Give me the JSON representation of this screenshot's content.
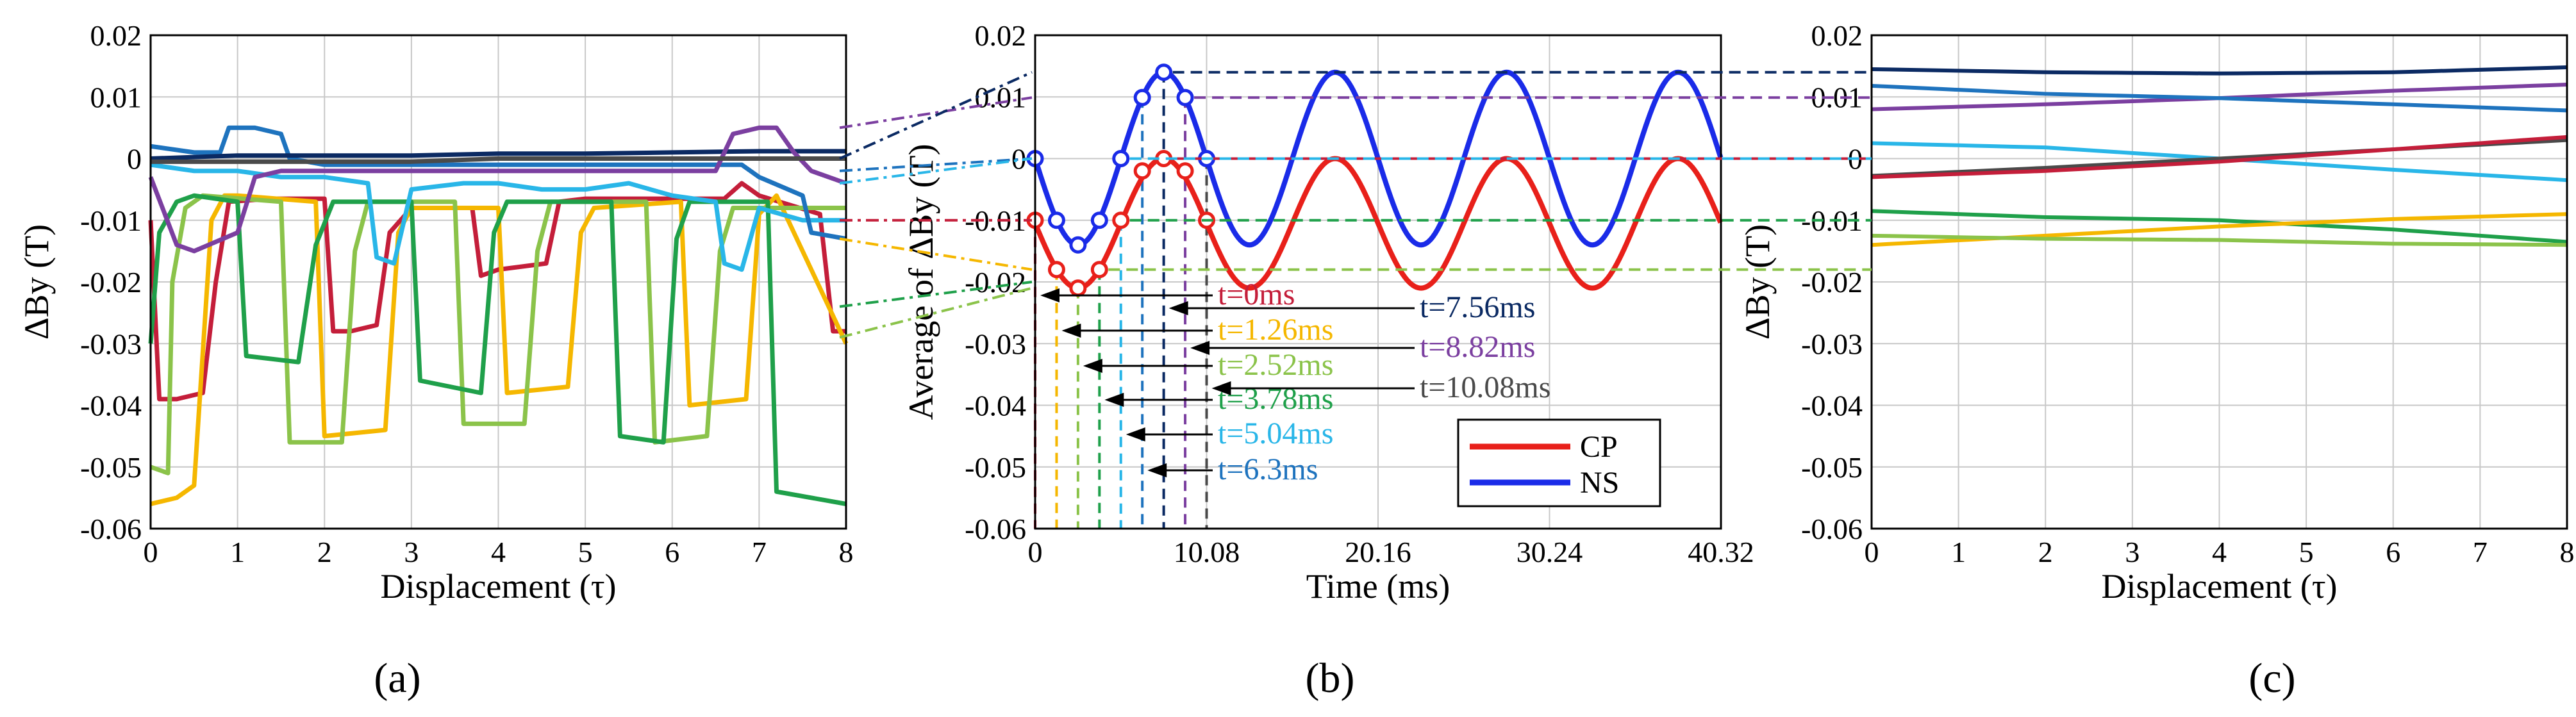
{
  "figure_labels": [
    "(a)",
    "(b)",
    "(c)"
  ],
  "colors": {
    "t0": "#C41E3A",
    "t126": "#F5B700",
    "t252": "#8BC34A",
    "t378": "#1FA04A",
    "t504": "#29B6E8",
    "t63": "#1E73BE",
    "t756": "#0B2A63",
    "t882": "#7B3FA0",
    "t1008": "#4A4A4A",
    "cp": "#E8201A",
    "ns": "#1A2BE8"
  },
  "chart_data": [
    {
      "panel": "(a)",
      "type": "line",
      "xlabel": "Displacement (τ)",
      "ylabel": "ΔBy (T)",
      "xlim": [
        0,
        8
      ],
      "ylim": [
        -0.06,
        0.02
      ],
      "xticks": [
        "0",
        "1",
        "2",
        "3",
        "4",
        "5",
        "6",
        "7",
        "8"
      ],
      "yticks": [
        "0.02",
        "0.01",
        "0",
        "-0.01",
        "-0.02",
        "-0.03",
        "-0.04",
        "-0.05",
        "-0.06"
      ],
      "grid": true,
      "series": [
        {
          "name": "t=0ms",
          "color_key": "t0",
          "x": [
            0,
            0.1,
            0.3,
            0.6,
            0.75,
            0.9,
            1.4,
            2.0,
            2.1,
            2.3,
            2.6,
            2.75,
            3.0,
            3.7,
            3.8,
            4.0,
            4.55,
            4.7,
            5.0,
            6.6,
            6.8,
            7.0,
            7.7,
            7.85,
            8.0
          ],
          "y": [
            -0.01,
            -0.039,
            -0.039,
            -0.038,
            -0.02,
            -0.007,
            -0.0065,
            -0.0065,
            -0.028,
            -0.028,
            -0.027,
            -0.012,
            -0.008,
            -0.008,
            -0.019,
            -0.018,
            -0.017,
            -0.007,
            -0.0065,
            -0.0065,
            -0.004,
            -0.006,
            -0.009,
            -0.028,
            -0.028
          ]
        },
        {
          "name": "t=1.26ms",
          "color_key": "t126",
          "x": [
            0,
            0.3,
            0.5,
            0.7,
            0.85,
            1.0,
            1.9,
            2.0,
            2.7,
            2.85,
            3.0,
            4.0,
            4.1,
            4.8,
            4.95,
            5.1,
            6.1,
            6.2,
            6.85,
            7.0,
            7.2,
            8.0
          ],
          "y": [
            -0.056,
            -0.055,
            -0.053,
            -0.01,
            -0.006,
            -0.006,
            -0.007,
            -0.045,
            -0.044,
            -0.012,
            -0.008,
            -0.008,
            -0.038,
            -0.037,
            -0.012,
            -0.008,
            -0.007,
            -0.04,
            -0.039,
            -0.009,
            -0.006,
            -0.03
          ]
        },
        {
          "name": "t=2.52ms",
          "color_key": "t252",
          "x": [
            0,
            0.2,
            0.25,
            0.4,
            0.6,
            1.5,
            1.6,
            2.2,
            2.35,
            2.5,
            3.5,
            3.6,
            4.3,
            4.45,
            4.6,
            5.7,
            5.8,
            6.4,
            6.55,
            6.7,
            8.0
          ],
          "y": [
            -0.05,
            -0.051,
            -0.02,
            -0.008,
            -0.006,
            -0.007,
            -0.046,
            -0.046,
            -0.015,
            -0.007,
            -0.007,
            -0.043,
            -0.043,
            -0.015,
            -0.007,
            -0.007,
            -0.046,
            -0.045,
            -0.015,
            -0.008,
            -0.008
          ]
        },
        {
          "name": "t=3.78ms",
          "color_key": "t378",
          "x": [
            0,
            0.1,
            0.3,
            0.5,
            1.0,
            1.1,
            1.7,
            1.9,
            2.1,
            3.0,
            3.1,
            3.8,
            3.95,
            4.1,
            5.3,
            5.4,
            5.9,
            6.05,
            6.2,
            7.1,
            7.2,
            8.0
          ],
          "y": [
            -0.03,
            -0.012,
            -0.007,
            -0.006,
            -0.007,
            -0.032,
            -0.033,
            -0.014,
            -0.007,
            -0.007,
            -0.036,
            -0.038,
            -0.012,
            -0.007,
            -0.007,
            -0.045,
            -0.046,
            -0.013,
            -0.007,
            -0.007,
            -0.054,
            -0.056
          ]
        },
        {
          "name": "t=5.04ms",
          "color_key": "t504",
          "x": [
            0,
            0.5,
            1.0,
            1.5,
            2.0,
            2.5,
            2.6,
            2.8,
            3.0,
            3.6,
            4.0,
            4.5,
            5.0,
            5.5,
            6.0,
            6.5,
            6.6,
            6.8,
            7.0,
            7.5,
            8.0
          ],
          "y": [
            -0.001,
            -0.002,
            -0.002,
            -0.003,
            -0.003,
            -0.004,
            -0.016,
            -0.017,
            -0.005,
            -0.004,
            -0.004,
            -0.005,
            -0.005,
            -0.004,
            -0.006,
            -0.007,
            -0.017,
            -0.018,
            -0.008,
            -0.01,
            -0.01
          ]
        },
        {
          "name": "t=6.3ms",
          "color_key": "t63",
          "x": [
            0,
            0.5,
            0.8,
            0.9,
            1.2,
            1.5,
            1.6,
            2.0,
            3.0,
            4.0,
            5.0,
            6.0,
            6.8,
            7.0,
            7.5,
            7.6,
            8.0
          ],
          "y": [
            0.002,
            0.001,
            0.001,
            0.005,
            0.005,
            0.004,
            0.0,
            -0.001,
            -0.001,
            -0.001,
            -0.001,
            -0.001,
            -0.001,
            -0.003,
            -0.006,
            -0.012,
            -0.013
          ]
        },
        {
          "name": "t=7.56ms",
          "color_key": "t756",
          "x": [
            0,
            1,
            2,
            3,
            4,
            5,
            6,
            7,
            8
          ],
          "y": [
            0.0,
            0.0005,
            0.0005,
            0.0005,
            0.0008,
            0.0008,
            0.001,
            0.0012,
            0.0012
          ]
        },
        {
          "name": "t=8.82ms",
          "color_key": "t882",
          "x": [
            0,
            0.3,
            0.5,
            1.0,
            1.2,
            1.5,
            2.0,
            3.0,
            4.0,
            5.0,
            6.0,
            6.5,
            6.7,
            7.0,
            7.2,
            7.4,
            7.6,
            8.0
          ],
          "y": [
            -0.003,
            -0.014,
            -0.015,
            -0.012,
            -0.003,
            -0.002,
            -0.002,
            -0.002,
            -0.002,
            -0.002,
            -0.002,
            -0.002,
            0.004,
            0.005,
            0.005,
            0.001,
            -0.002,
            -0.004
          ]
        },
        {
          "name": "t=10.08ms",
          "color_key": "t1008",
          "x": [
            0,
            1,
            2,
            3,
            4,
            5,
            6,
            7,
            8
          ],
          "y": [
            -0.0005,
            -0.0005,
            -0.0005,
            -0.0005,
            0.0,
            0.0,
            0.0,
            0.0,
            0.0
          ]
        }
      ]
    },
    {
      "panel": "(b)",
      "type": "line",
      "xlabel": "Time (ms)",
      "ylabel": "Average of ΔBy (T)",
      "xlim": [
        0,
        40.32
      ],
      "ylim": [
        -0.06,
        0.02
      ],
      "xticks": [
        "0",
        "10.08",
        "20.16",
        "30.24",
        "40.32"
      ],
      "xtick_values": [
        0,
        10.08,
        20.16,
        30.24,
        40.32
      ],
      "yticks": [
        "0.02",
        "0.01",
        "0",
        "-0.01",
        "-0.02",
        "-0.03",
        "-0.04",
        "-0.05",
        "-0.06"
      ],
      "grid": true,
      "legend": {
        "position": "bottom-right",
        "entries": [
          "CP",
          "NS"
        ]
      },
      "series": [
        {
          "name": "CP",
          "color_key": "cp",
          "period": 10.08,
          "amplitude": 0.0105,
          "offset": -0.0105,
          "phase_at_t0": -0.0105
        },
        {
          "name": "NS",
          "color_key": "ns",
          "period": 10.08,
          "amplitude": 0.014,
          "offset": 0.0,
          "phase_at_t0": 0.0
        }
      ],
      "markers": {
        "CP": [
          [
            0,
            -0.01
          ],
          [
            1.26,
            -0.018
          ],
          [
            2.52,
            -0.021
          ],
          [
            3.78,
            -0.018
          ],
          [
            5.04,
            -0.01
          ],
          [
            6.3,
            -0.002
          ],
          [
            7.56,
            0.0
          ],
          [
            8.82,
            -0.002
          ],
          [
            10.08,
            -0.01
          ]
        ],
        "NS": [
          [
            0,
            0.0
          ],
          [
            1.26,
            -0.01
          ],
          [
            2.52,
            -0.014
          ],
          [
            3.78,
            -0.01
          ],
          [
            5.04,
            0.0
          ],
          [
            6.3,
            0.0099
          ],
          [
            7.56,
            0.014
          ],
          [
            8.82,
            0.0099
          ],
          [
            10.08,
            0.0
          ]
        ]
      },
      "annotations": [
        {
          "label": "t=0ms",
          "color_key": "t0",
          "t": 0
        },
        {
          "label": "t=1.26ms",
          "color_key": "t126",
          "t": 1.26
        },
        {
          "label": "t=2.52ms",
          "color_key": "t252",
          "t": 2.52
        },
        {
          "label": "t=3.78ms",
          "color_key": "t378",
          "t": 3.78
        },
        {
          "label": "t=5.04ms",
          "color_key": "t504",
          "t": 5.04
        },
        {
          "label": "t=6.3ms",
          "color_key": "t63",
          "t": 6.3
        },
        {
          "label": "t=7.56ms",
          "color_key": "t756",
          "t": 7.56
        },
        {
          "label": "t=8.82ms",
          "color_key": "t882",
          "t": 8.82
        },
        {
          "label": "t=10.08ms",
          "color_key": "t1008",
          "t": 10.08
        }
      ]
    },
    {
      "panel": "(c)",
      "type": "line",
      "xlabel": "Displacement (τ)",
      "ylabel": "ΔBy (T)",
      "xlim": [
        0,
        8
      ],
      "ylim": [
        -0.06,
        0.02
      ],
      "xticks": [
        "0",
        "1",
        "2",
        "3",
        "4",
        "5",
        "6",
        "7",
        "8"
      ],
      "yticks": [
        "0.02",
        "0.01",
        "0",
        "-0.01",
        "-0.02",
        "-0.03",
        "-0.04",
        "-0.05",
        "-0.06"
      ],
      "grid": true,
      "series": [
        {
          "name": "t=7.56ms",
          "color_key": "t756",
          "x": [
            0,
            2,
            4,
            6,
            8
          ],
          "y": [
            0.0145,
            0.014,
            0.0138,
            0.014,
            0.0148
          ]
        },
        {
          "name": "t=8.82ms",
          "color_key": "t882",
          "x": [
            0,
            2,
            4,
            6,
            8
          ],
          "y": [
            0.008,
            0.0088,
            0.0098,
            0.011,
            0.012
          ]
        },
        {
          "name": "t=6.3ms",
          "color_key": "t63",
          "x": [
            0,
            2,
            4,
            6,
            8
          ],
          "y": [
            0.0118,
            0.0105,
            0.0098,
            0.0088,
            0.0078
          ]
        },
        {
          "name": "t=5.04ms",
          "color_key": "t504",
          "x": [
            0,
            2,
            4,
            6,
            8
          ],
          "y": [
            0.0025,
            0.0018,
            0.0,
            -0.0018,
            -0.0035
          ]
        },
        {
          "name": "t=10.08ms",
          "color_key": "t1008",
          "x": [
            0,
            2,
            4,
            6,
            8
          ],
          "y": [
            -0.0028,
            -0.0015,
            0.0,
            0.0015,
            0.003
          ]
        },
        {
          "name": "t=0ms",
          "color_key": "t0",
          "x": [
            0,
            2,
            4,
            6,
            8
          ],
          "y": [
            -0.003,
            -0.002,
            -0.0005,
            0.0015,
            0.0035
          ]
        },
        {
          "name": "t=3.78ms",
          "color_key": "t378",
          "x": [
            0,
            2,
            4,
            6,
            8
          ],
          "y": [
            -0.0085,
            -0.0095,
            -0.01,
            -0.0115,
            -0.0135
          ]
        },
        {
          "name": "t=1.26ms",
          "color_key": "t126",
          "x": [
            0,
            2,
            4,
            6,
            8
          ],
          "y": [
            -0.014,
            -0.0125,
            -0.011,
            -0.0098,
            -0.009
          ]
        },
        {
          "name": "t=2.52ms",
          "color_key": "t252",
          "x": [
            0,
            2,
            4,
            6,
            8
          ],
          "y": [
            -0.0125,
            -0.013,
            -0.0132,
            -0.0138,
            -0.014
          ]
        }
      ]
    }
  ]
}
